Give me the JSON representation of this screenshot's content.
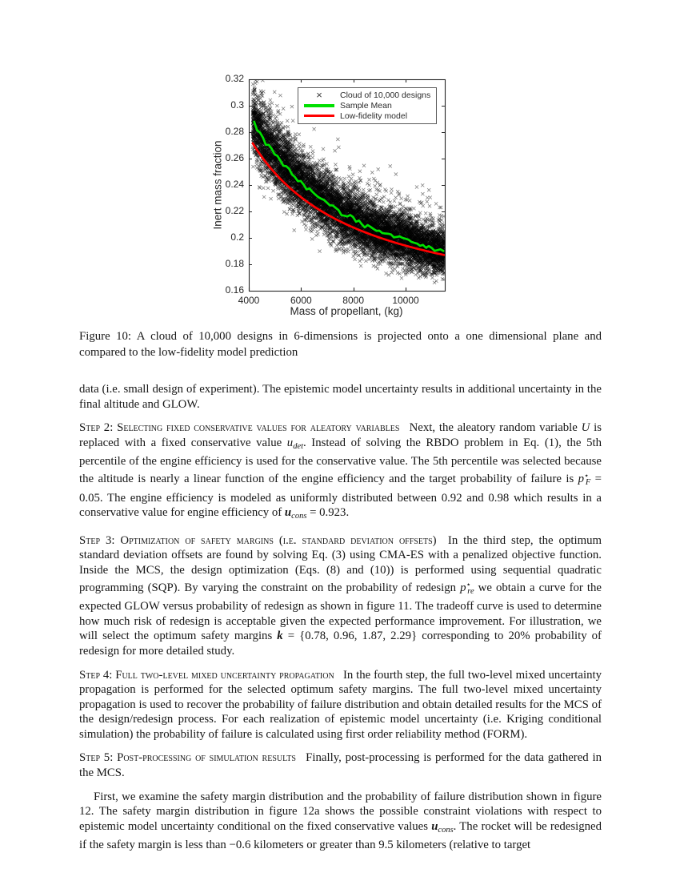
{
  "figure": {
    "caption": "Figure 10: A cloud of 10,000 designs in 6-dimensions is projected onto a one dimensional plane and compared to the low-fidelity model prediction"
  },
  "chart_data": {
    "type": "scatter",
    "title": "",
    "xlabel": "Mass of propellant, (kg)",
    "ylabel": "Inert mass fraction",
    "xlim": [
      4000,
      11500
    ],
    "ylim": [
      0.16,
      0.32
    ],
    "xticks": [
      "4000",
      "6000",
      "8000",
      "10000"
    ],
    "yticks": [
      "0.16",
      "0.18",
      "0.2",
      "0.22",
      "0.24",
      "0.26",
      "0.28",
      "0.3",
      "0.32"
    ],
    "grid": false,
    "axis_color": "#262626",
    "legend": {
      "position": "top-right-inside",
      "entries": [
        {
          "label": "Cloud of 10,000 designs",
          "marker": "x",
          "color": "#3a3a3a"
        },
        {
          "label": "Sample Mean",
          "marker": "line",
          "color": "#00e000"
        },
        {
          "label": "Low-fidelity model",
          "marker": "line",
          "color": "#ff0000"
        }
      ]
    },
    "series": [
      {
        "name": "Cloud of 10,000 designs",
        "type": "scatter",
        "marker": "x",
        "color": "#000000",
        "n": 10000,
        "generator": {
          "seed": 42,
          "x_min": 4150,
          "x_max": 11500,
          "mean_model": {
            "a": 0.1392,
            "b": 549.3,
            "offset": 0.017,
            "offset_decay": 3500
          },
          "sd_left": 0.0125,
          "sd_right": 0.0085,
          "outlier_prob": 0.1,
          "outlier_max": 0.04
        }
      },
      {
        "name": "Sample Mean",
        "type": "line",
        "color": "#00e000",
        "x": [
          4150,
          4500,
          5000,
          5500,
          6000,
          6500,
          7000,
          7500,
          8000,
          8500,
          9000,
          9500,
          10000,
          10500,
          11000,
          11500
        ],
        "y": [
          0.2886,
          0.2767,
          0.2624,
          0.2506,
          0.2408,
          0.2324,
          0.2252,
          0.219,
          0.2135,
          0.2087,
          0.2045,
          0.2007,
          0.1973,
          0.1943,
          0.1915,
          0.1891
        ]
      },
      {
        "name": "Low-fidelity model",
        "type": "line",
        "color": "#ff0000",
        "x": [
          4150,
          4500,
          5000,
          5500,
          6000,
          6500,
          7000,
          7500,
          8000,
          8500,
          9000,
          9500,
          10000,
          10500,
          11000,
          11500
        ],
        "y": [
          0.2716,
          0.2613,
          0.2491,
          0.2391,
          0.2308,
          0.2237,
          0.2177,
          0.2124,
          0.2079,
          0.2038,
          0.2002,
          0.197,
          0.1941,
          0.1915,
          0.1891,
          0.187
        ]
      }
    ]
  },
  "body": {
    "paragraphs": [
      {
        "indent": false,
        "runs": [
          {
            "s": "t",
            "text": "data (i.e. small design of experiment). The epistemic model uncertainty results in additional uncertainty in the final altitude and GLOW."
          }
        ]
      },
      {
        "indent": false,
        "runs": [
          {
            "s": "sc",
            "text": "Step 2: Selecting fixed conservative values for aleatory variables"
          },
          {
            "s": "t",
            "text": "  Next, the aleatory random variable "
          },
          {
            "s": "i",
            "text": "U"
          },
          {
            "s": "t",
            "text": " is replaced with a fixed conservative value "
          },
          {
            "s": "i",
            "text": "u"
          },
          {
            "s": "sub",
            "text": "det"
          },
          {
            "s": "t",
            "text": ". Instead of solving the RBDO problem in Eq. (1), the 5th percentile of the engine efficiency is used for the conservative value. The 5th percentile was selected because the altitude is nearly a linear function of the engine efficiency and the target probability of failure is "
          },
          {
            "s": "i",
            "text": "p"
          },
          {
            "s": "sup",
            "text": "⋆"
          },
          {
            "s": "subtuck",
            "text": "F"
          },
          {
            "s": "t",
            "text": " = 0.05. The engine efficiency is modeled as uniformly distributed between 0.92 and 0.98 which results in a conservative value for engine efficiency of "
          },
          {
            "s": "bi",
            "text": "u"
          },
          {
            "s": "sub",
            "text": "cons"
          },
          {
            "s": "t",
            "text": " = 0.923."
          }
        ]
      },
      {
        "indent": false,
        "runs": [
          {
            "s": "sc",
            "text": "Step 3: Optimization of safety margins (i.e. standard deviation offsets)"
          },
          {
            "s": "t",
            "text": "  In the third step, the optimum standard deviation offsets are found by solving Eq. (3) using CMA-ES with a penalized objective function. Inside the MCS, the design optimization (Eqs. (8) and (10)) is performed using sequential quadratic programming (SQP). By varying the constraint on the probability of redesign "
          },
          {
            "s": "i",
            "text": "p"
          },
          {
            "s": "sup",
            "text": "⋆"
          },
          {
            "s": "subtuck",
            "text": "re"
          },
          {
            "s": "t",
            "text": " we obtain a curve for the expected GLOW versus probability of redesign as shown in figure 11. The tradeoff curve is used to determine how much risk of redesign is acceptable given the expected performance improvement. For illustration, we will select the optimum safety margins "
          },
          {
            "s": "bi",
            "text": "k"
          },
          {
            "s": "t",
            "text": " = {0.78, 0.96, 1.87, 2.29} corresponding to 20% probability of redesign for more detailed study."
          }
        ]
      },
      {
        "indent": false,
        "runs": [
          {
            "s": "sc",
            "text": "Step 4: Full two-level mixed uncertainty propagation"
          },
          {
            "s": "t",
            "text": "  In the fourth step, the full two-level mixed uncertainty propagation is performed for the selected optimum safety margins. The full two-level mixed uncertainty propagation is used to recover the probability of failure distribution and obtain detailed results for the MCS of the design/redesign process. For each realization of epistemic model uncertainty (i.e. Kriging conditional simulation) the probability of failure is calculated using first order reliability method (FORM)."
          }
        ]
      },
      {
        "indent": false,
        "runs": [
          {
            "s": "sc",
            "text": "Step 5: Post-processing of simulation results"
          },
          {
            "s": "t",
            "text": "  Finally, post-processing is performed for the data gathered in the MCS."
          }
        ]
      },
      {
        "indent": true,
        "runs": [
          {
            "s": "t",
            "text": "First, we examine the safety margin distribution and the probability of failure distribution shown in figure 12. The safety margin distribution in figure 12a shows the possible constraint violations with respect to epistemic model uncertainty conditional on the fixed conservative values "
          },
          {
            "s": "bi",
            "text": "u"
          },
          {
            "s": "sub",
            "text": "cons"
          },
          {
            "s": "t",
            "text": ". The rocket will be redesigned if the safety margin is less than −0.6 kilometers or greater than 9.5 kilometers (relative to target"
          }
        ]
      }
    ]
  }
}
